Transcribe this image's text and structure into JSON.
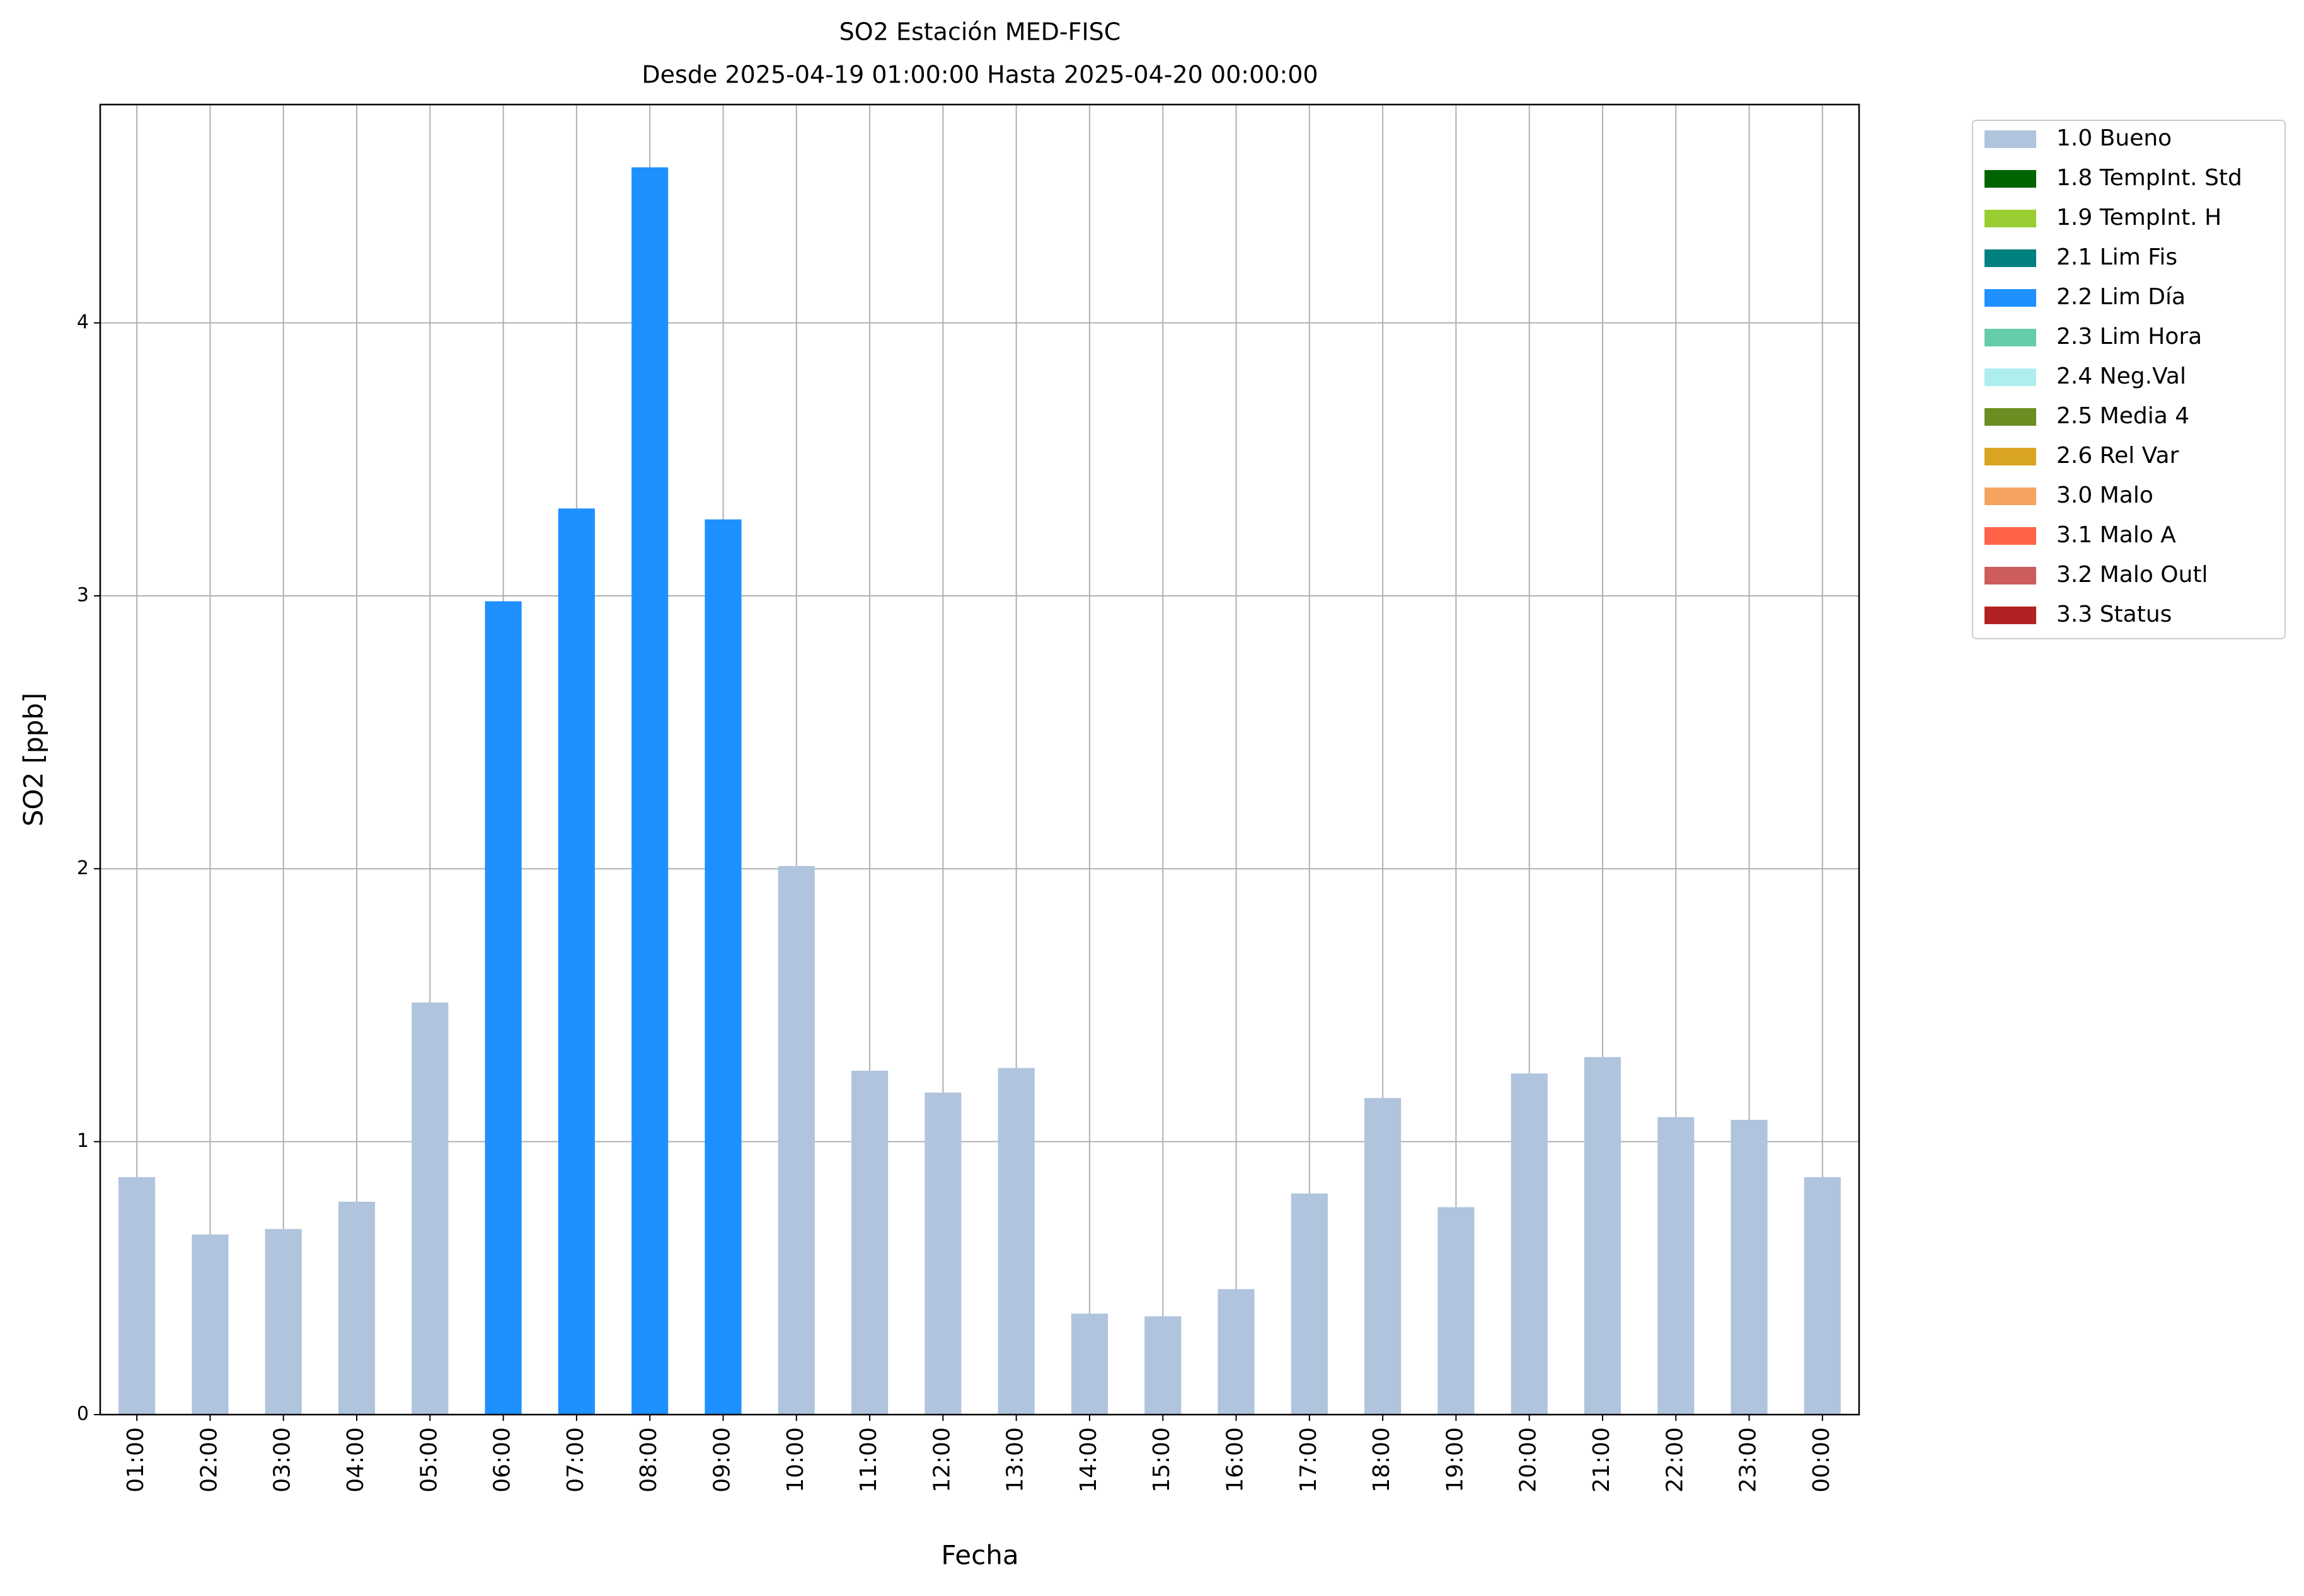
{
  "chart_data": {
    "type": "bar",
    "title": "SO2 Estación MED-FISC",
    "subtitle": "Desde 2025-04-19 01:00:00 Hasta 2025-04-20 00:00:00",
    "x_label": "Fecha",
    "y_label": "SO2 [ppb]",
    "categories": [
      "01:00",
      "02:00",
      "03:00",
      "04:00",
      "05:00",
      "06:00",
      "07:00",
      "08:00",
      "09:00",
      "10:00",
      "11:00",
      "12:00",
      "13:00",
      "14:00",
      "15:00",
      "16:00",
      "17:00",
      "18:00",
      "19:00",
      "20:00",
      "21:00",
      "22:00",
      "23:00",
      "00:00"
    ],
    "series": [
      {
        "name": "1.0 Bueno",
        "color": "#b0c4de",
        "values": [
          0.87,
          0.66,
          0.68,
          0.78,
          1.51,
          null,
          null,
          null,
          null,
          2.01,
          1.26,
          1.18,
          1.27,
          0.37,
          0.36,
          0.46,
          0.81,
          1.16,
          0.76,
          1.25,
          1.31,
          1.09,
          1.08,
          0.87
        ]
      },
      {
        "name": "1.8 TempInt. Std",
        "color": "#006400",
        "values": [
          null,
          null,
          null,
          null,
          null,
          null,
          null,
          null,
          null,
          null,
          null,
          null,
          null,
          null,
          null,
          null,
          null,
          null,
          null,
          null,
          null,
          null,
          null,
          null
        ]
      },
      {
        "name": "1.9 TempInt. H",
        "color": "#9acd32",
        "values": [
          null,
          null,
          null,
          null,
          null,
          null,
          null,
          null,
          null,
          null,
          null,
          null,
          null,
          null,
          null,
          null,
          null,
          null,
          null,
          null,
          null,
          null,
          null,
          null
        ]
      },
      {
        "name": "2.1 Lim Fis",
        "color": "#008080",
        "values": [
          null,
          null,
          null,
          null,
          null,
          null,
          null,
          null,
          null,
          null,
          null,
          null,
          null,
          null,
          null,
          null,
          null,
          null,
          null,
          null,
          null,
          null,
          null,
          null
        ]
      },
      {
        "name": "2.2 Lim Día",
        "color": "#1e90ff",
        "values": [
          null,
          null,
          null,
          null,
          null,
          2.98,
          3.32,
          4.57,
          3.28,
          null,
          null,
          null,
          null,
          null,
          null,
          null,
          null,
          null,
          null,
          null,
          null,
          null,
          null,
          null
        ]
      },
      {
        "name": "2.3 Lim Hora",
        "color": "#66cdaa",
        "values": [
          null,
          null,
          null,
          null,
          null,
          null,
          null,
          null,
          null,
          null,
          null,
          null,
          null,
          null,
          null,
          null,
          null,
          null,
          null,
          null,
          null,
          null,
          null,
          null
        ]
      },
      {
        "name": "2.4 Neg.Val",
        "color": "#afeeee",
        "values": [
          null,
          null,
          null,
          null,
          null,
          null,
          null,
          null,
          null,
          null,
          null,
          null,
          null,
          null,
          null,
          null,
          null,
          null,
          null,
          null,
          null,
          null,
          null,
          null
        ]
      },
      {
        "name": "2.5 Media 4",
        "color": "#6b8e23",
        "values": [
          null,
          null,
          null,
          null,
          null,
          null,
          null,
          null,
          null,
          null,
          null,
          null,
          null,
          null,
          null,
          null,
          null,
          null,
          null,
          null,
          null,
          null,
          null,
          null
        ]
      },
      {
        "name": "2.6 Rel Var",
        "color": "#daa520",
        "values": [
          null,
          null,
          null,
          null,
          null,
          null,
          null,
          null,
          null,
          null,
          null,
          null,
          null,
          null,
          null,
          null,
          null,
          null,
          null,
          null,
          null,
          null,
          null,
          null
        ]
      },
      {
        "name": "3.0 Malo",
        "color": "#f4a460",
        "values": [
          null,
          null,
          null,
          null,
          null,
          null,
          null,
          null,
          null,
          null,
          null,
          null,
          null,
          null,
          null,
          null,
          null,
          null,
          null,
          null,
          null,
          null,
          null,
          null
        ]
      },
      {
        "name": "3.1 Malo A",
        "color": "#ff6347",
        "values": [
          null,
          null,
          null,
          null,
          null,
          null,
          null,
          null,
          null,
          null,
          null,
          null,
          null,
          null,
          null,
          null,
          null,
          null,
          null,
          null,
          null,
          null,
          null,
          null
        ]
      },
      {
        "name": "3.2 Malo Outl",
        "color": "#cd5c5c",
        "values": [
          null,
          null,
          null,
          null,
          null,
          null,
          null,
          null,
          null,
          null,
          null,
          null,
          null,
          null,
          null,
          null,
          null,
          null,
          null,
          null,
          null,
          null,
          null,
          null
        ]
      },
      {
        "name": "3.3 Status",
        "color": "#b22222",
        "values": [
          null,
          null,
          null,
          null,
          null,
          null,
          null,
          null,
          null,
          null,
          null,
          null,
          null,
          null,
          null,
          null,
          null,
          null,
          null,
          null,
          null,
          null,
          null,
          null
        ]
      }
    ],
    "ylim": [
      0,
      4.8
    ],
    "yticks": [
      0,
      1,
      2,
      3,
      4
    ],
    "grid": true,
    "legend": "outside-right"
  }
}
